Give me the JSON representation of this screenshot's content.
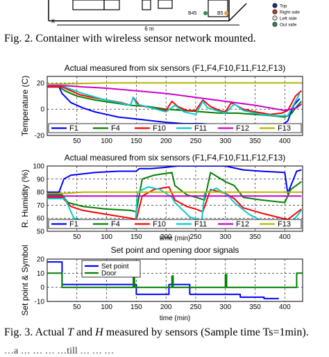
{
  "fig2": {
    "caption": "Fig. 2. Container with wireless sensor network mounted.",
    "dimension_label": "6 m",
    "axis_label": "x",
    "sensor_labels": [
      "B45",
      "B5"
    ],
    "legend": [
      {
        "label": "Top",
        "color": "#1f2f8f"
      },
      {
        "label": "Right side",
        "color": "#c0392b"
      },
      {
        "label": "Left side",
        "color": "#e0e0e0"
      },
      {
        "label": "Out side",
        "color": "#2e8b57"
      }
    ]
  },
  "fig3": {
    "caption_prefix": "Fig. 3. Actual ",
    "caption_T": "T",
    "caption_and": " and ",
    "caption_H": "H",
    "caption_suffix": " measured by sensors (Sample time Ts=1min).",
    "bottom_text": "…a … … … …till … … …"
  },
  "chart_data": [
    {
      "type": "line",
      "title": "Actual measured from six sensors (F1,F4,F10,F11,F12,F13)",
      "xlabel": "",
      "ylabel": "Temperature (C)",
      "xlim": [
        0,
        430
      ],
      "ylim": [
        -20,
        25
      ],
      "xticks": [
        0,
        50,
        100,
        150,
        200,
        250,
        300,
        350,
        400
      ],
      "yticks": [
        -20,
        0,
        20
      ],
      "grid": true,
      "legend_position": "bottom",
      "series": [
        {
          "name": "F1",
          "color": "#0000ff",
          "x": [
            0,
            20,
            25,
            40,
            60,
            80,
            100,
            120,
            140,
            160,
            180,
            200,
            230,
            260,
            290,
            320,
            340,
            360,
            380,
            395,
            405,
            415,
            425
          ],
          "y": [
            17,
            17,
            12,
            5,
            1,
            -2,
            -4,
            -6,
            -7,
            -8,
            -9,
            -10,
            -11,
            -11,
            -12,
            -12,
            -12,
            -12,
            -13,
            -12,
            -9,
            3,
            8
          ]
        },
        {
          "name": "F4",
          "color": "#008000",
          "x": [
            0,
            20,
            30,
            50,
            80,
            110,
            140,
            170,
            200,
            230,
            260,
            290,
            320,
            350,
            380,
            400,
            410,
            420,
            428
          ],
          "y": [
            17,
            17,
            14,
            10,
            7,
            5,
            3,
            2,
            0,
            -1,
            -2,
            -3,
            -3,
            -4,
            -5,
            -6,
            -4,
            2,
            6
          ]
        },
        {
          "name": "F10",
          "color": "#ff0000",
          "x": [
            0,
            25,
            35,
            55,
            75,
            100,
            125,
            140,
            145,
            155,
            175,
            200,
            210,
            220,
            235,
            250,
            262,
            275,
            290,
            300,
            310,
            330,
            350,
            375,
            395,
            405,
            418,
            428
          ],
          "y": [
            17,
            17,
            15,
            11,
            9,
            7,
            5,
            3,
            9,
            3,
            1,
            -1,
            6,
            2,
            -1,
            -1,
            7,
            2,
            -1,
            -2,
            5,
            0,
            -2,
            -4,
            -3,
            -1,
            10,
            14
          ]
        },
        {
          "name": "F11",
          "color": "#00cccc",
          "x": [
            0,
            25,
            35,
            60,
            90,
            120,
            140,
            145,
            150,
            175,
            200,
            215,
            230,
            250,
            262,
            270,
            300,
            315,
            330,
            360,
            390,
            405,
            425
          ],
          "y": [
            18,
            18,
            16,
            12,
            8,
            5,
            3,
            9,
            4,
            1,
            -2,
            3,
            -2,
            -4,
            6,
            1,
            -3,
            4,
            -1,
            -4,
            -5,
            -5,
            12
          ]
        },
        {
          "name": "F12",
          "color": "#cc00cc",
          "x": [
            0,
            30,
            60,
            100,
            150,
            200,
            250,
            300,
            350,
            400,
            420,
            428
          ],
          "y": [
            18,
            18,
            17,
            16,
            14,
            12,
            9,
            6,
            3,
            -1,
            1,
            4
          ]
        },
        {
          "name": "F13",
          "color": "#b5b500",
          "x": [
            0,
            50,
            100,
            150,
            200,
            250,
            300,
            350,
            400,
            428
          ],
          "y": [
            19,
            19.5,
            20,
            20,
            20,
            20,
            20,
            20,
            20,
            20
          ]
        }
      ]
    },
    {
      "type": "line",
      "title": "Actual measured from six sensors (F1,F4,F10,F11,F12,F13)",
      "xlabel": "time (min)",
      "ylabel": "R. Humidity (%)",
      "xlim": [
        0,
        430
      ],
      "ylim": [
        50,
        100
      ],
      "xticks": [
        0,
        50,
        100,
        150,
        200,
        250,
        300,
        350,
        400
      ],
      "yticks": [
        50,
        60,
        70,
        80,
        90,
        100
      ],
      "grid": true,
      "legend_position": "bottom",
      "series": [
        {
          "name": "F1",
          "color": "#0000ff",
          "x": [
            0,
            20,
            28,
            40,
            80,
            120,
            150,
            155,
            175,
            200,
            220,
            245,
            260,
            300,
            330,
            360,
            400,
            405,
            420,
            428
          ],
          "y": [
            80,
            80,
            90,
            93,
            95,
            96,
            96,
            98,
            98,
            99,
            100,
            100,
            100,
            100,
            97,
            96,
            95,
            79,
            96,
            97
          ]
        },
        {
          "name": "F4",
          "color": "#008000",
          "x": [
            0,
            25,
            35,
            60,
            100,
            140,
            150,
            160,
            180,
            210,
            215,
            235,
            250,
            265,
            275,
            300,
            315,
            330,
            360,
            400,
            410,
            428
          ],
          "y": [
            78,
            78,
            72,
            69,
            67,
            66,
            65,
            90,
            93,
            95,
            85,
            78,
            76,
            74,
            95,
            88,
            85,
            76,
            74,
            72,
            82,
            88
          ]
        },
        {
          "name": "F10",
          "color": "#ff0000",
          "x": [
            0,
            25,
            40,
            60,
            100,
            140,
            150,
            160,
            180,
            205,
            215,
            235,
            250,
            262,
            275,
            300,
            315,
            330,
            360,
            395,
            405,
            428
          ],
          "y": [
            76,
            76,
            69,
            66,
            63,
            60,
            59,
            77,
            82,
            84,
            74,
            69,
            67,
            65,
            82,
            79,
            75,
            68,
            64,
            60,
            59,
            67
          ]
        },
        {
          "name": "F11",
          "color": "#00cccc",
          "x": [
            0,
            30,
            45,
            70,
            100,
            130,
            148,
            152,
            170,
            190,
            210,
            215,
            240,
            260,
            265,
            285,
            305,
            315,
            340,
            365,
            395,
            405,
            428
          ],
          "y": [
            75,
            75,
            60,
            57,
            55,
            53,
            52,
            80,
            84,
            82,
            76,
            72,
            61,
            58,
            79,
            83,
            77,
            72,
            63,
            57,
            53,
            53,
            66
          ]
        },
        {
          "name": "F12",
          "color": "#cc00cc",
          "x": [
            0,
            50,
            100,
            150,
            200,
            250,
            300,
            350,
            400,
            428
          ],
          "y": [
            77,
            77,
            77,
            77,
            77,
            77,
            77,
            77,
            77,
            77
          ]
        },
        {
          "name": "F13",
          "color": "#b5b500",
          "x": [
            0,
            30,
            60,
            100,
            150,
            200,
            250,
            300,
            350,
            400,
            428
          ],
          "y": [
            79,
            79,
            80,
            80,
            80,
            80,
            80,
            80,
            80,
            80,
            80
          ]
        }
      ]
    },
    {
      "type": "line",
      "title": "Set point and opening door signals",
      "xlabel": "time (min)",
      "ylabel": "Set point & Symbol",
      "xlim": [
        0,
        430
      ],
      "ylim": [
        -10,
        20
      ],
      "xticks": [
        0,
        50,
        100,
        150,
        200,
        250,
        300,
        350,
        400
      ],
      "yticks": [
        -10,
        0,
        10,
        20
      ],
      "grid": true,
      "legend_position": "top-left",
      "series": [
        {
          "name": "Set point",
          "color": "#0000ff",
          "step": true,
          "x": [
            0,
            25,
            25,
            150,
            150,
            205,
            205,
            240,
            240,
            325,
            325,
            365,
            365,
            390
          ],
          "y": [
            18,
            18,
            2,
            2,
            -5,
            -5,
            2,
            2,
            -5,
            -5,
            -7,
            -7,
            -8,
            -8
          ]
        },
        {
          "name": "Door",
          "color": "#008000",
          "step": true,
          "x": [
            0,
            25,
            25,
            145,
            145,
            147,
            147,
            149,
            149,
            210,
            210,
            212,
            212,
            214,
            214,
            300,
            300,
            302,
            302,
            304,
            304,
            420,
            420,
            430
          ],
          "y": [
            10,
            10,
            0,
            0,
            9,
            9,
            0,
            0,
            0,
            0,
            8,
            8,
            0,
            0,
            0,
            0,
            9,
            9,
            0,
            0,
            0,
            0,
            10,
            10
          ]
        }
      ]
    }
  ]
}
